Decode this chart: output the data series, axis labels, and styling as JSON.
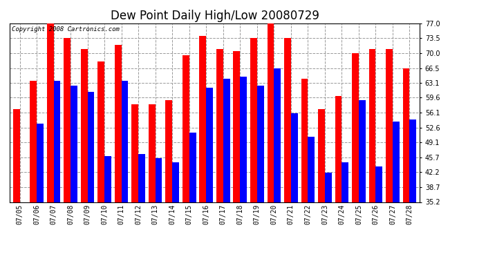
{
  "title": "Dew Point Daily High/Low 20080729",
  "copyright": "Copyright 2008 Cartronics.com",
  "dates": [
    "07/05",
    "07/06",
    "07/07",
    "07/08",
    "07/09",
    "07/10",
    "07/11",
    "07/12",
    "07/13",
    "07/14",
    "07/15",
    "07/16",
    "07/17",
    "07/18",
    "07/19",
    "07/20",
    "07/21",
    "07/22",
    "07/23",
    "07/24",
    "07/25",
    "07/26",
    "07/27",
    "07/28"
  ],
  "highs": [
    57.0,
    63.5,
    77.0,
    73.5,
    71.0,
    68.0,
    72.0,
    58.0,
    58.0,
    59.0,
    69.5,
    74.0,
    71.0,
    70.5,
    73.5,
    77.0,
    73.5,
    64.0,
    57.0,
    60.0,
    70.0,
    71.0,
    71.0,
    66.5
  ],
  "lows": [
    35.2,
    53.5,
    63.5,
    62.5,
    61.0,
    46.0,
    63.5,
    46.5,
    45.5,
    44.5,
    51.5,
    62.0,
    64.0,
    64.5,
    62.5,
    66.5,
    56.0,
    50.5,
    42.0,
    44.5,
    59.0,
    43.5,
    54.0,
    54.5
  ],
  "high_color": "#ff0000",
  "low_color": "#0000ff",
  "bg_color": "#ffffff",
  "plot_bg_color": "#ffffff",
  "grid_color": "#999999",
  "bar_width": 0.4,
  "ylim_min": 35.2,
  "ylim_max": 77.0,
  "yticks": [
    35.2,
    38.7,
    42.2,
    45.7,
    49.1,
    52.6,
    56.1,
    59.6,
    63.1,
    66.5,
    70.0,
    73.5,
    77.0
  ],
  "title_fontsize": 12,
  "tick_fontsize": 7,
  "copyright_fontsize": 6.5
}
